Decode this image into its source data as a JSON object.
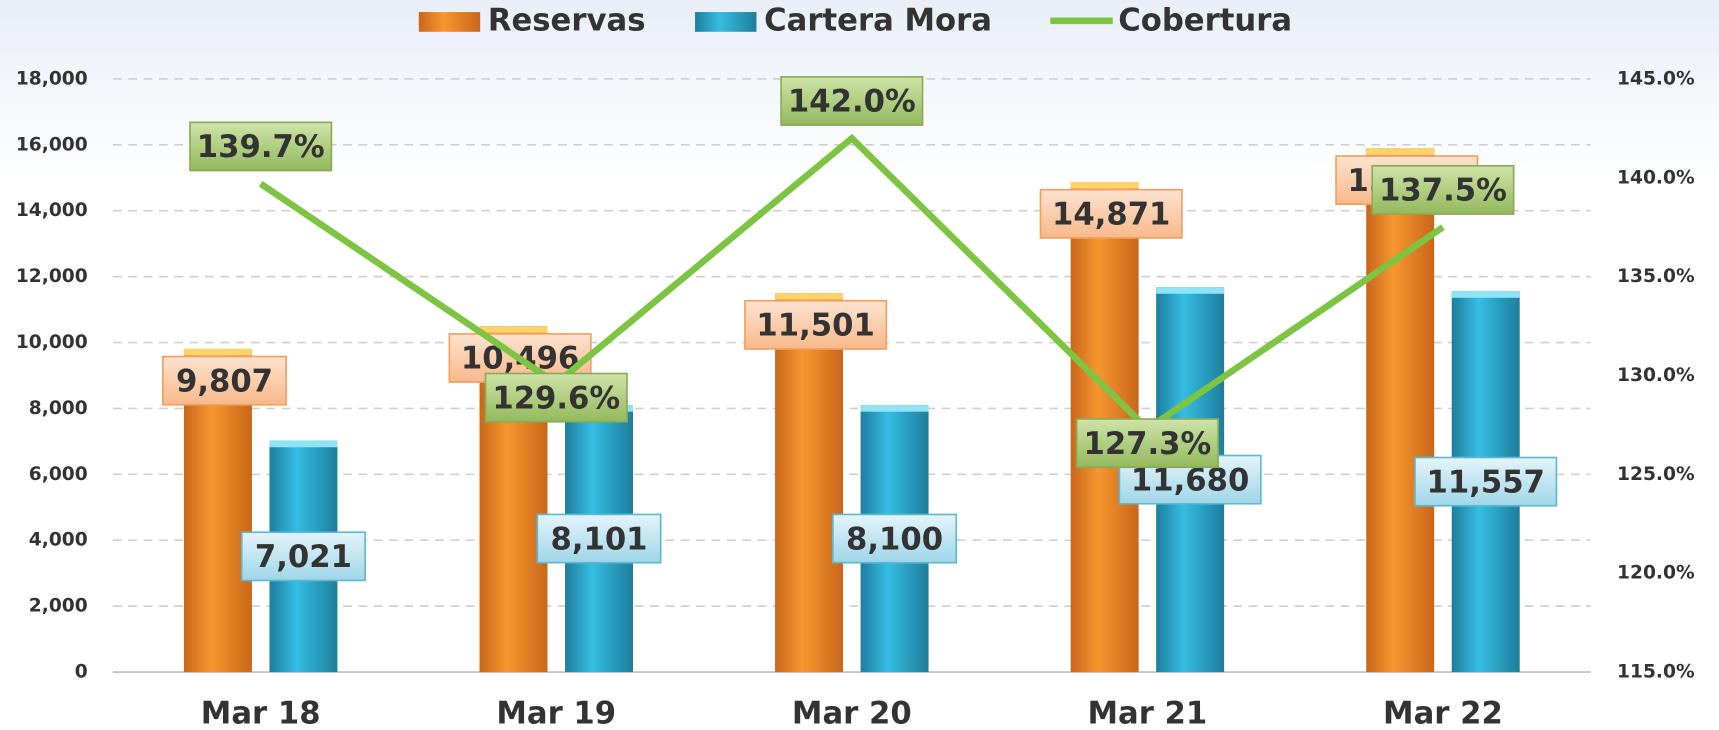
{
  "chart_data": {
    "type": "bar",
    "categories": [
      "Mar 18",
      "Mar 19",
      "Mar 20",
      "Mar 21",
      "Mar 22"
    ],
    "series": [
      {
        "name": "Reservas",
        "color": "#f28a2a",
        "values": [
          9807,
          10496,
          11501,
          14871,
          15894
        ],
        "value_labels": [
          "9,807",
          "10,496",
          "11,501",
          "14,871",
          "15,894"
        ]
      },
      {
        "name": "Cartera Mora",
        "color": "#29a9cf",
        "values": [
          7021,
          8101,
          8100,
          11680,
          11557
        ],
        "value_labels": [
          "7,021",
          "8,101",
          "8,100",
          "11,680",
          "11,557"
        ]
      },
      {
        "name": "Cobertura",
        "type": "line",
        "axis": "y2",
        "color": "#7dc443",
        "values": [
          139.7,
          129.6,
          142.0,
          127.3,
          137.5
        ],
        "value_labels": [
          "139.7%",
          "129.6%",
          "142.0%",
          "127.3%",
          "137.5%"
        ]
      }
    ],
    "ylim": [
      0,
      18000
    ],
    "yticks": [
      0,
      {
        "value": 2000,
        "label": "2,000"
      },
      {
        "value": 4000,
        "label": "4,000"
      },
      {
        "value": 6000,
        "label": "6,000"
      },
      {
        "value": 8000,
        "label": "8,000"
      },
      {
        "value": 10000,
        "label": "10,000"
      },
      {
        "value": 12000,
        "label": "12,000"
      },
      {
        "value": 14000,
        "label": "14,000"
      },
      {
        "value": 16000,
        "label": "16,000"
      },
      {
        "value": 18000,
        "label": "18,000"
      }
    ],
    "y2lim": [
      115,
      145
    ],
    "y2ticks": [
      {
        "value": 115,
        "label": "115.0%"
      },
      {
        "value": 120,
        "label": "120.0%"
      },
      {
        "value": 125,
        "label": "125.0%"
      },
      {
        "value": 130,
        "label": "130.0%"
      },
      {
        "value": 135,
        "label": "135.0%"
      },
      {
        "value": 140,
        "label": "140.0%"
      },
      {
        "value": 145,
        "label": "145.0%"
      }
    ],
    "grid": true,
    "legend": "top"
  }
}
